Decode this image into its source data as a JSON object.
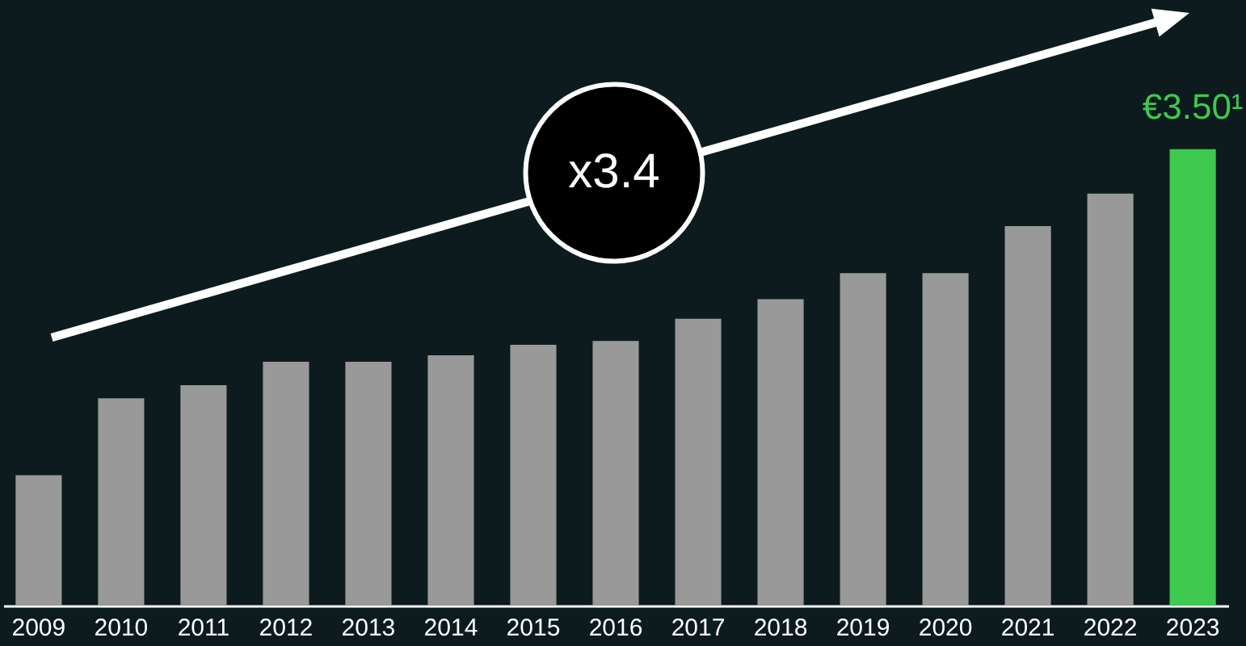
{
  "chart_data": {
    "type": "bar",
    "tick_labels": "x",
    "categories": [
      "2009",
      "2010",
      "2011",
      "2012",
      "2013",
      "2014",
      "2015",
      "2016",
      "2017",
      "2018",
      "2019",
      "2020",
      "2021",
      "2022",
      "2023"
    ],
    "values": [
      1.0,
      1.59,
      1.69,
      1.87,
      1.87,
      1.92,
      2.0,
      2.03,
      2.2,
      2.35,
      2.55,
      2.55,
      2.91,
      3.16,
      3.5
    ],
    "colors": [
      "#999999",
      "#999999",
      "#999999",
      "#999999",
      "#999999",
      "#999999",
      "#999999",
      "#999999",
      "#999999",
      "#999999",
      "#999999",
      "#999999",
      "#999999",
      "#999999",
      "#3ec94f"
    ],
    "value_labels": [
      null,
      null,
      null,
      null,
      null,
      null,
      null,
      null,
      null,
      null,
      null,
      null,
      null,
      null,
      "€3.50¹"
    ],
    "annotations": [
      "x3.4"
    ],
    "grid": false
  }
}
